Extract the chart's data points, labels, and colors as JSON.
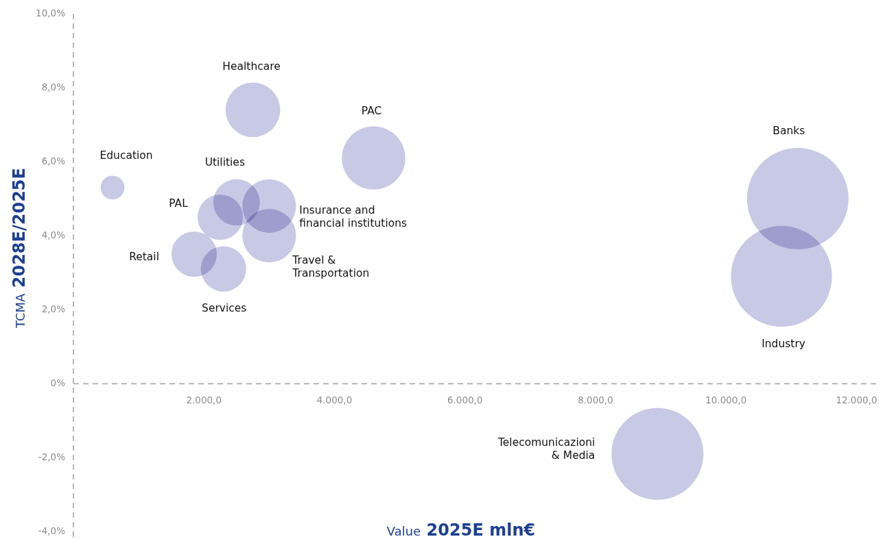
{
  "chart_data": {
    "type": "bubble",
    "xlabel": "Value 2025E mln€",
    "ylabel": "TCMA 2028E/2025E",
    "xlim": [
      0,
      12300
    ],
    "xticks": [
      {
        "value": 2000,
        "label": "2.000,0"
      },
      {
        "value": 4000,
        "label": "4.000,0"
      },
      {
        "value": 6000,
        "label": "6.000,0"
      },
      {
        "value": 8000,
        "label": "8.000,0"
      },
      {
        "value": 10000,
        "label": "10.000,0"
      },
      {
        "value": 12000,
        "label": "12.000,0"
      }
    ],
    "ylim": [
      -4.2,
      10
    ],
    "yticks": [
      {
        "value": -4,
        "label": "-4,0%"
      },
      {
        "value": -2,
        "label": "-2,0%"
      },
      {
        "value": 0,
        "label": "0%"
      },
      {
        "value": 2,
        "label": "2,0%"
      },
      {
        "value": 4,
        "label": "4,0%"
      },
      {
        "value": 6,
        "label": "6,0%"
      },
      {
        "value": 8,
        "label": "8,0%"
      },
      {
        "value": 10,
        "label": "10,0%"
      }
    ],
    "series": [
      {
        "name": "Education",
        "color": "#c8c9e5",
        "x": [
          600
        ],
        "values": [
          5.3
        ],
        "sizes": [
          0.055
        ]
      },
      {
        "name": "Healthcare",
        "color": "#c8c9e5",
        "x": [
          2750
        ],
        "values": [
          7.4
        ],
        "sizes": [
          0.29
        ]
      },
      {
        "name": "PAC",
        "color": "#c8c9e5",
        "x": [
          4600
        ],
        "values": [
          6.1
        ],
        "sizes": [
          0.39
        ]
      },
      {
        "name": "Utilities",
        "color": "#c8c9e5",
        "x": [
          2500
        ],
        "values": [
          4.9
        ],
        "sizes": [
          0.21
        ]
      },
      {
        "name": "PAL",
        "color": "#c8c9e5",
        "x": [
          2250
        ],
        "values": [
          4.5
        ],
        "sizes": [
          0.2
        ]
      },
      {
        "name": "Insurance and\nfinancial institutions",
        "color": "#c8c9e5",
        "x": [
          3000
        ],
        "values": [
          4.8
        ],
        "sizes": [
          0.28
        ]
      },
      {
        "name": "Travel &\nTransportation",
        "color": "#c8c9e5",
        "x": [
          3000
        ],
        "values": [
          4.0
        ],
        "sizes": [
          0.28
        ]
      },
      {
        "name": "Retail",
        "color": "#c8c9e5",
        "x": [
          1850
        ],
        "values": [
          3.5
        ],
        "sizes": [
          0.2
        ]
      },
      {
        "name": "Services",
        "color": "#c8c9e5",
        "x": [
          2300
        ],
        "values": [
          3.1
        ],
        "sizes": [
          0.2
        ]
      },
      {
        "name": "Banks",
        "color": "#c8c9e5",
        "x": [
          11100
        ],
        "values": [
          5.0
        ],
        "sizes": [
          1
        ]
      },
      {
        "name": "Industry",
        "color": "#c8c9e5",
        "x": [
          10850
        ],
        "values": [
          2.9
        ],
        "sizes": [
          0.99
        ]
      },
      {
        "name": "Telecomunicazioni\n& Media",
        "color": "#c8c9e5",
        "x": [
          8950
        ],
        "values": [
          -1.9
        ],
        "sizes": [
          0.82
        ]
      }
    ]
  }
}
